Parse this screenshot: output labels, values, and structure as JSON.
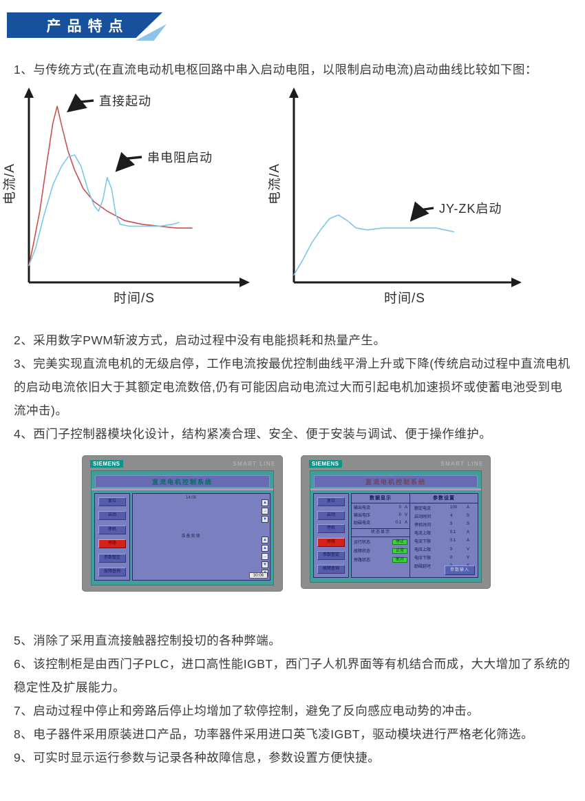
{
  "banner": {
    "title": "产品特点"
  },
  "paragraphs": [
    "1、与传统方式(在直流电动机电枢回路中串入启动电阻，以限制启动电流)启动曲线比较如下图：",
    "2、采用数字PWM斩波方式，启动过程中没有电能损耗和热量产生。",
    "3、完美实现直流电机的无级启停，工作电流按最优控制曲线平滑上升或下降(传统启动过程中直流电机的启动电流依旧大于其额定电流数倍,仍有可能因启动电流过大而引起电机加速损坏或使蓄电池受到电流冲击)。",
    "4、西门子控制器模块化设计，结构紧凑合理、安全、便于安装与调试、便于操作维护。",
    "5、消除了采用直流接触器控制投切的各种弊端。",
    "6、该控制柜是由西门子PLC，进口高性能IGBT，西门子人机界面等有机结合而成，大大增加了系统的稳定性及扩展能力。",
    "7、启动过程中停止和旁路后停止均增加了软停控制，避免了反向感应电动势的冲击。",
    "8、电子器件采用原装进口产品，功率器件采用进口英飞凌IGBT，驱动模块进行严格老化筛选。",
    "9、可实时显示运行参数与记录各种故障信息，参数设置方便快捷。"
  ],
  "chart_data": [
    {
      "type": "line",
      "title": "",
      "xlabel": "时间/S",
      "ylabel": "电流/A",
      "axes_note": "qualitative sketch, no numeric ticks; x/y normalized 0-1 of plot area",
      "grid": false,
      "legend_position": "annotations-with-arrows",
      "series": [
        {
          "name": "直接起动",
          "color": "#c9504d",
          "x": [
            0,
            0.02,
            0.05,
            0.08,
            0.11,
            0.13,
            0.15,
            0.18,
            0.21,
            0.25,
            0.3,
            0.36,
            0.44,
            0.52,
            0.6,
            0.68,
            0.75
          ],
          "y": [
            0.09,
            0.2,
            0.38,
            0.62,
            0.85,
            0.94,
            0.84,
            0.7,
            0.6,
            0.5,
            0.43,
            0.38,
            0.33,
            0.31,
            0.3,
            0.29,
            0.29
          ]
        },
        {
          "name": "串电阻启动",
          "color": "#7cc7e8",
          "x": [
            0,
            0.03,
            0.07,
            0.11,
            0.15,
            0.18,
            0.21,
            0.24,
            0.27,
            0.3,
            0.32,
            0.34,
            0.36,
            0.38,
            0.4,
            0.42,
            0.46,
            0.52,
            0.6,
            0.66,
            0.69
          ],
          "y": [
            0.09,
            0.18,
            0.36,
            0.52,
            0.62,
            0.67,
            0.68,
            0.62,
            0.5,
            0.41,
            0.38,
            0.44,
            0.56,
            0.5,
            0.36,
            0.31,
            0.3,
            0.3,
            0.3,
            0.31,
            0.32
          ]
        }
      ]
    },
    {
      "type": "line",
      "title": "",
      "xlabel": "时间/S",
      "ylabel": "电流/A",
      "axes_note": "qualitative sketch, no numeric ticks; x/y normalized 0-1 of plot area",
      "grid": false,
      "legend_position": "annotation-with-arrow",
      "series": [
        {
          "name": "JY-ZK启动",
          "color": "#7cc7e8",
          "x": [
            0,
            0.04,
            0.08,
            0.12,
            0.16,
            0.2,
            0.24,
            0.28,
            0.33,
            0.4,
            0.48,
            0.56,
            0.64,
            0.72
          ],
          "y": [
            0.04,
            0.12,
            0.21,
            0.28,
            0.34,
            0.36,
            0.33,
            0.29,
            0.28,
            0.29,
            0.29,
            0.29,
            0.29,
            0.27
          ]
        }
      ]
    }
  ],
  "hmi": {
    "brand": "SIEMENS",
    "model": "SMART LINE",
    "title": "直流电机控制系统",
    "sidebar": [
      "复位",
      "启动",
      "停机",
      "旁路",
      "参数整定",
      "故障查询"
    ],
    "left_panel": {
      "clock": "14:09",
      "status_text": "准备就绪",
      "footer_value": "30:06",
      "scroll_group1": [
        "▲",
        "→",
        "▼"
      ],
      "scroll_group2": [
        "▲",
        "▲",
        "→",
        "▼",
        "▼"
      ]
    },
    "right_panel": {
      "display_header": "数据显示",
      "display_rows": [
        {
          "label": "输出电流",
          "value": "0",
          "unit": "A"
        },
        {
          "label": "输出电压",
          "value": "0",
          "unit": "V"
        },
        {
          "label": "励磁电流",
          "value": "0.1",
          "unit": "A"
        }
      ],
      "status_header": "状态显示",
      "status_rows": [
        {
          "label": "运行状态",
          "state": "停止"
        },
        {
          "label": "故障状态",
          "state": "正常"
        },
        {
          "label": "旁路状态",
          "state": "断开"
        }
      ],
      "settings_header": "参数设置",
      "param_rows": [
        {
          "label": "额定电流",
          "value": "100",
          "unit": "A"
        },
        {
          "label": "启动时间",
          "value": "4",
          "unit": "S"
        },
        {
          "label": "停机时间",
          "value": "5",
          "unit": "S"
        },
        {
          "label": "电流上限",
          "value": "0.1",
          "unit": "A"
        },
        {
          "label": "电流下限",
          "value": "0.1",
          "unit": "A"
        },
        {
          "label": "电压上限",
          "value": "0",
          "unit": "V"
        },
        {
          "label": "电压下限",
          "value": "0",
          "unit": "V"
        },
        {
          "label": "励磁延时",
          "value": "0",
          "unit": "S"
        }
      ],
      "button": "参数输入"
    }
  },
  "colors": {
    "banner_bg": "#17519e",
    "banner_fold": "#8ec3ea",
    "curve_red": "#c9504d",
    "curve_blue": "#7cc7e8",
    "hmi_bezel": "#8d8d8d",
    "hmi_screen_teal": "#3fa09a",
    "hmi_content": "#7a7fc0",
    "hmi_titlebar": "#666bb4",
    "hmi_pink_stripe": "#e57fc1",
    "hmi_button": "#555cab",
    "hmi_button_red": "#d42218",
    "hmi_status_green": "#3bd43b",
    "siemens_teal": "#0d9488"
  }
}
